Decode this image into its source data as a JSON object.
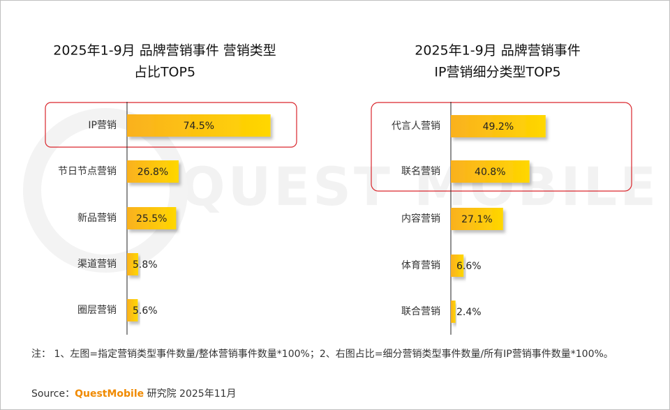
{
  "chart_data": [
    {
      "type": "hbar",
      "title": [
        "2025年1-9月 品牌营销事件 营销类型",
        "占比TOP5"
      ],
      "categories": [
        "IP营销",
        "节日节点营销",
        "新品营销",
        "渠道营销",
        "圈层营销"
      ],
      "values": [
        74.5,
        26.8,
        25.5,
        5.8,
        5.6
      ],
      "value_labels": [
        "74.5%",
        "26.8%",
        "25.5%",
        "5.8%",
        "5.6%"
      ],
      "colors": [
        "#fab11f",
        "#ffd700"
      ]
    },
    {
      "type": "hbar",
      "title": [
        "2025年1-9月 品牌营销事件",
        "IP营销细分类型TOP5"
      ],
      "categories": [
        "代言人营销",
        "联名营销",
        "内容营销",
        "体育营销",
        "联合营销"
      ],
      "values": [
        49.2,
        40.8,
        27.1,
        6.6,
        2.4
      ],
      "value_labels": [
        "49.2%",
        "40.8%",
        "27.1%",
        "6.6%",
        "2.4%"
      ],
      "colors": [
        "#fab11f",
        "#ffd700"
      ]
    }
  ],
  "watermark": "QUEST MOBILE",
  "note": "注： 1、左图=指定营销类型事件数量/整体营销事件数量*100%；2、右图占比=细分营销类型事件数量/所有IP营销事件数量*100%。",
  "source": [
    "Source：",
    "QuestMobile",
    "研究院 2025年11月"
  ]
}
